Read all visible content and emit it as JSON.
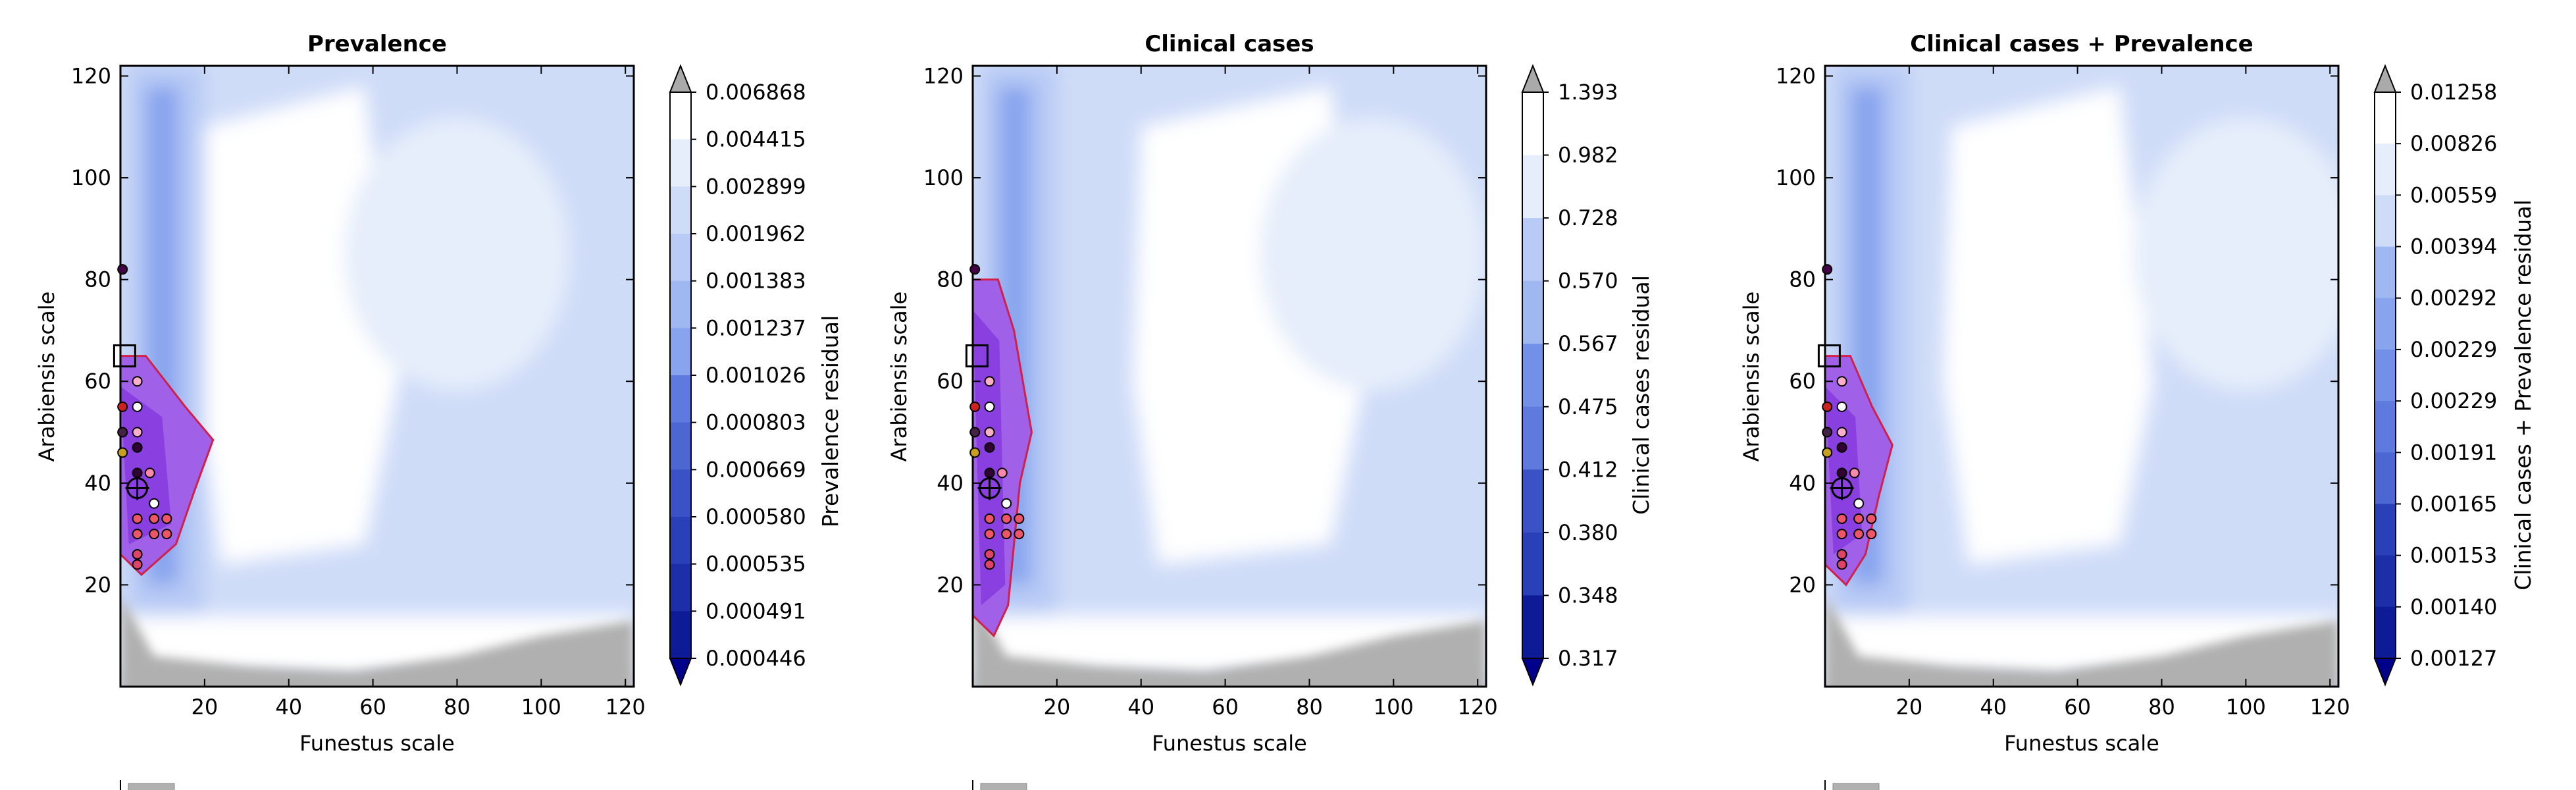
{
  "chart_data": [
    {
      "type": "heatmap",
      "title": "Prevalence",
      "xlabel": "Funestus scale",
      "ylabel": "Arabiensis scale",
      "xlim": [
        0,
        122
      ],
      "ylim": [
        0,
        122
      ],
      "xticks": [
        20,
        40,
        60,
        80,
        100,
        120
      ],
      "yticks": [
        20,
        40,
        60,
        80,
        100,
        120
      ],
      "colorbar_label": "Prevalence residual",
      "colorbar_levels": [
        "0.006868",
        "0.004415",
        "0.002899",
        "0.001962",
        "0.001383",
        "0.001237",
        "0.001026",
        "0.000803",
        "0.000669",
        "0.000580",
        "0.000535",
        "0.000491",
        "0.000446"
      ],
      "high_region": {
        "x0": 20,
        "x1": 58
      },
      "top_region_center_x": 60,
      "purple_region": {
        "y_top": 65,
        "y_bottom": 22,
        "x_max": 22
      },
      "points": [
        {
          "x": 0.5,
          "y": 82,
          "c": "#440044"
        },
        {
          "x": 0.5,
          "y": 55,
          "c": "#cc2222"
        },
        {
          "x": 0.5,
          "y": 50,
          "c": "#442244"
        },
        {
          "x": 0.5,
          "y": 46,
          "c": "#c8a020"
        },
        {
          "x": 4,
          "y": 60,
          "c": "#ffb0c8"
        },
        {
          "x": 4,
          "y": 55,
          "c": "#ffffff"
        },
        {
          "x": 4,
          "y": 50,
          "c": "#ffb0c8"
        },
        {
          "x": 4,
          "y": 47,
          "c": "#330033"
        },
        {
          "x": 4,
          "y": 42,
          "c": "#330033"
        },
        {
          "x": 4,
          "y": 33,
          "c": "#ee5566"
        },
        {
          "x": 4,
          "y": 30,
          "c": "#ee5566"
        },
        {
          "x": 4,
          "y": 26,
          "c": "#dd4466"
        },
        {
          "x": 4,
          "y": 24,
          "c": "#dd4466"
        },
        {
          "x": 7,
          "y": 42,
          "c": "#ff88aa"
        },
        {
          "x": 8,
          "y": 36,
          "c": "#ffffff"
        },
        {
          "x": 8,
          "y": 33,
          "c": "#ee5566"
        },
        {
          "x": 8,
          "y": 30,
          "c": "#ee5566"
        },
        {
          "x": 11,
          "y": 30,
          "c": "#ee5566"
        },
        {
          "x": 11,
          "y": 33,
          "c": "#ee5566"
        }
      ],
      "square_marker": {
        "x": 1,
        "y": 65
      },
      "circle_marker": {
        "x": 4,
        "y": 39
      }
    },
    {
      "type": "heatmap",
      "title": "Clinical cases",
      "xlabel": "Funestus scale",
      "ylabel": "Arabiensis scale",
      "xlim": [
        0,
        122
      ],
      "ylim": [
        0,
        122
      ],
      "xticks": [
        20,
        40,
        60,
        80,
        100,
        120
      ],
      "yticks": [
        20,
        40,
        60,
        80,
        100,
        120
      ],
      "colorbar_label": "Clinical cases residual",
      "colorbar_levels": [
        "1.393",
        "0.982",
        "0.728",
        "0.570",
        "0.567",
        "0.475",
        "0.412",
        "0.380",
        "0.348",
        "0.317"
      ],
      "high_region": {
        "x0": 40,
        "x1": 85
      },
      "top_region_center_x": 75,
      "purple_region": {
        "y_top": 80,
        "y_bottom": 10,
        "x_max": 14
      },
      "points": [
        {
          "x": 0.5,
          "y": 82,
          "c": "#440044"
        },
        {
          "x": 0.5,
          "y": 55,
          "c": "#cc2222"
        },
        {
          "x": 0.5,
          "y": 50,
          "c": "#442244"
        },
        {
          "x": 0.5,
          "y": 46,
          "c": "#c8a020"
        },
        {
          "x": 4,
          "y": 60,
          "c": "#ffb0c8"
        },
        {
          "x": 4,
          "y": 55,
          "c": "#ffffff"
        },
        {
          "x": 4,
          "y": 50,
          "c": "#ffb0c8"
        },
        {
          "x": 4,
          "y": 47,
          "c": "#330033"
        },
        {
          "x": 4,
          "y": 42,
          "c": "#330033"
        },
        {
          "x": 4,
          "y": 33,
          "c": "#ee5566"
        },
        {
          "x": 4,
          "y": 30,
          "c": "#ee5566"
        },
        {
          "x": 4,
          "y": 26,
          "c": "#dd4466"
        },
        {
          "x": 4,
          "y": 24,
          "c": "#dd4466"
        },
        {
          "x": 7,
          "y": 42,
          "c": "#ff88aa"
        },
        {
          "x": 8,
          "y": 36,
          "c": "#ffffff"
        },
        {
          "x": 8,
          "y": 33,
          "c": "#ee5566"
        },
        {
          "x": 8,
          "y": 30,
          "c": "#ee5566"
        },
        {
          "x": 11,
          "y": 30,
          "c": "#ee5566"
        },
        {
          "x": 11,
          "y": 33,
          "c": "#ee5566"
        }
      ],
      "square_marker": {
        "x": 1,
        "y": 65
      },
      "circle_marker": {
        "x": 4,
        "y": 39
      }
    },
    {
      "type": "heatmap",
      "title": "Clinical cases + Prevalence",
      "xlabel": "Funestus scale",
      "ylabel": "Arabiensis scale",
      "xlim": [
        0,
        122
      ],
      "ylim": [
        0,
        122
      ],
      "xticks": [
        20,
        40,
        60,
        80,
        100,
        120
      ],
      "yticks": [
        20,
        40,
        60,
        80,
        100,
        120
      ],
      "colorbar_label": "Clinical cases + Prevalence residual",
      "colorbar_levels": [
        "0.01258",
        "0.00826",
        "0.00559",
        "0.00394",
        "0.00292",
        "0.00229",
        "0.00229",
        "0.00191",
        "0.00165",
        "0.00153",
        "0.00140",
        "0.00127"
      ],
      "high_region": {
        "x0": 30,
        "x1": 70
      },
      "top_region_center_x": 80,
      "purple_region": {
        "y_top": 65,
        "y_bottom": 20,
        "x_max": 16
      },
      "points": [
        {
          "x": 0.5,
          "y": 82,
          "c": "#440044"
        },
        {
          "x": 0.5,
          "y": 55,
          "c": "#cc2222"
        },
        {
          "x": 0.5,
          "y": 50,
          "c": "#442244"
        },
        {
          "x": 0.5,
          "y": 46,
          "c": "#c8a020"
        },
        {
          "x": 4,
          "y": 60,
          "c": "#ffb0c8"
        },
        {
          "x": 4,
          "y": 55,
          "c": "#ffffff"
        },
        {
          "x": 4,
          "y": 50,
          "c": "#ffb0c8"
        },
        {
          "x": 4,
          "y": 47,
          "c": "#330033"
        },
        {
          "x": 4,
          "y": 42,
          "c": "#330033"
        },
        {
          "x": 4,
          "y": 33,
          "c": "#ee5566"
        },
        {
          "x": 4,
          "y": 30,
          "c": "#ee5566"
        },
        {
          "x": 4,
          "y": 26,
          "c": "#dd4466"
        },
        {
          "x": 4,
          "y": 24,
          "c": "#dd4466"
        },
        {
          "x": 7,
          "y": 42,
          "c": "#ff88aa"
        },
        {
          "x": 8,
          "y": 36,
          "c": "#ffffff"
        },
        {
          "x": 8,
          "y": 33,
          "c": "#ee5566"
        },
        {
          "x": 8,
          "y": 30,
          "c": "#ee5566"
        },
        {
          "x": 11,
          "y": 30,
          "c": "#ee5566"
        },
        {
          "x": 11,
          "y": 33,
          "c": "#ee5566"
        }
      ],
      "square_marker": {
        "x": 1,
        "y": 65
      },
      "circle_marker": {
        "x": 4,
        "y": 39
      }
    }
  ],
  "colors": {
    "levels": [
      "#000080",
      "#0d1b96",
      "#1c2ea8",
      "#2a40b8",
      "#3a52c6",
      "#4c66d2",
      "#5e7ade",
      "#7290e8",
      "#88a4ee",
      "#a0b8f2",
      "#b8caf5",
      "#cfdcf8",
      "#e6eefb",
      "#ffffff"
    ],
    "cap_high": "#aaaaaa",
    "cap_low": "#00008b",
    "gray": "#b0b0b0",
    "purple_outer": "#a060e8",
    "purple_mid": "#8a3fe0",
    "purple_core": "#6a1fc0",
    "contour": "#d0204a"
  }
}
